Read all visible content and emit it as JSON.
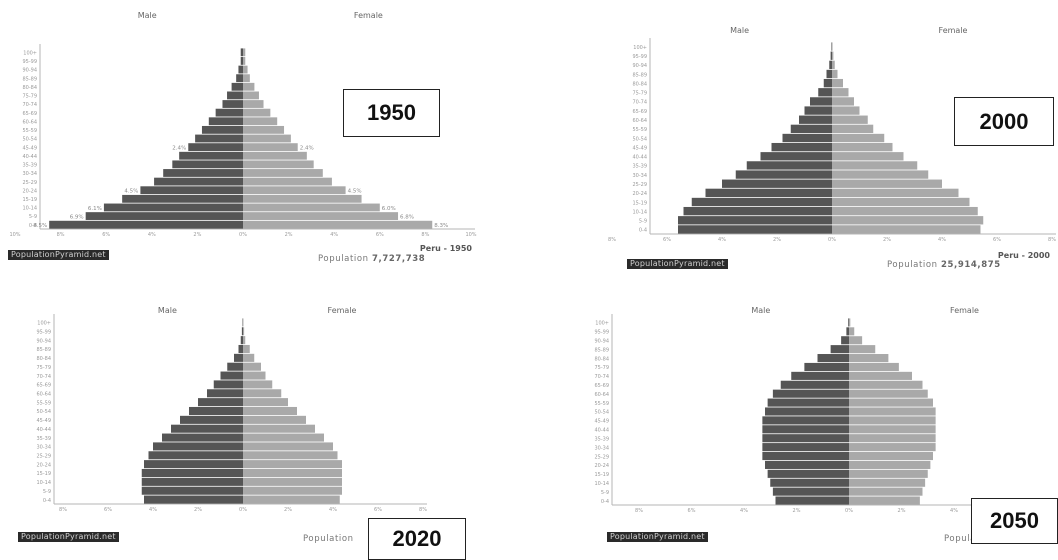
{
  "chart_data": [
    {
      "type": "population-pyramid",
      "year": "1950",
      "headers": {
        "left": "Male",
        "right": "Female"
      },
      "source": "PopulationPyramid.net",
      "country": "Peru - 1950",
      "population_label": "Population",
      "population_value": "7,727,738",
      "age_groups": [
        "0-4",
        "5-9",
        "10-14",
        "15-19",
        "20-24",
        "25-29",
        "30-34",
        "35-39",
        "40-44",
        "45-49",
        "50-54",
        "55-59",
        "60-64",
        "65-69",
        "70-74",
        "75-79",
        "80-84",
        "85-89",
        "90-94",
        "95-99",
        "100+"
      ],
      "male": [
        8.5,
        6.9,
        6.1,
        5.3,
        4.5,
        3.9,
        3.5,
        3.1,
        2.8,
        2.4,
        2.1,
        1.8,
        1.5,
        1.2,
        0.9,
        0.7,
        0.5,
        0.3,
        0.2,
        0.1,
        0.1
      ],
      "female": [
        8.3,
        6.8,
        6.0,
        5.2,
        4.5,
        3.9,
        3.5,
        3.1,
        2.8,
        2.4,
        2.1,
        1.8,
        1.5,
        1.2,
        0.9,
        0.7,
        0.5,
        0.3,
        0.2,
        0.1,
        0.1
      ],
      "male_labels": [
        "8.5%",
        "6.9%",
        "6.1%",
        "",
        "4.5%",
        "",
        "",
        "",
        "",
        "2.4%",
        "",
        "",
        "",
        "",
        "",
        "",
        "",
        "",
        "",
        "",
        ""
      ],
      "female_labels": [
        "8.3%",
        "6.8%",
        "6.0%",
        "",
        "4.5%",
        "",
        "",
        "",
        "",
        "2.4%",
        "",
        "",
        "",
        "",
        "",
        "",
        "",
        "",
        "",
        "",
        ""
      ],
      "x_ticks": [
        "10%",
        "8%",
        "6%",
        "4%",
        "2%",
        "0%",
        "2%",
        "4%",
        "6%",
        "8%",
        "10%"
      ],
      "xlim": [
        -10,
        10
      ]
    },
    {
      "type": "population-pyramid",
      "year": "2000",
      "headers": {
        "left": "Male",
        "right": "Female"
      },
      "source": "PopulationPyramid.net",
      "country": "Peru - 2000",
      "population_label": "Population",
      "population_value": "25,914,875",
      "age_groups": [
        "0-4",
        "5-9",
        "10-14",
        "15-19",
        "20-24",
        "25-29",
        "30-34",
        "35-39",
        "40-44",
        "45-49",
        "50-54",
        "55-59",
        "60-64",
        "65-69",
        "70-74",
        "75-79",
        "80-84",
        "85-89",
        "90-94",
        "95-99",
        "100+"
      ],
      "male": [
        5.6,
        5.6,
        5.4,
        5.1,
        4.6,
        4.0,
        3.5,
        3.1,
        2.6,
        2.2,
        1.8,
        1.5,
        1.2,
        1.0,
        0.8,
        0.5,
        0.3,
        0.2,
        0.1,
        0.05,
        0.02
      ],
      "female": [
        5.4,
        5.5,
        5.3,
        5.0,
        4.6,
        4.0,
        3.5,
        3.1,
        2.6,
        2.2,
        1.9,
        1.5,
        1.3,
        1.0,
        0.8,
        0.6,
        0.4,
        0.2,
        0.1,
        0.05,
        0.02
      ],
      "male_labels": [],
      "female_labels": [],
      "x_ticks": [
        "8%",
        "6%",
        "4%",
        "2%",
        "0%",
        "2%",
        "4%",
        "6%",
        "8%"
      ],
      "xlim": [
        -8,
        8
      ]
    },
    {
      "type": "population-pyramid",
      "year": "2020",
      "headers": {
        "left": "Male",
        "right": "Female"
      },
      "source": "PopulationPyramid.net",
      "country": "",
      "population_label": "Population",
      "population_value": "",
      "age_groups": [
        "0-4",
        "5-9",
        "10-14",
        "15-19",
        "20-24",
        "25-29",
        "30-34",
        "35-39",
        "40-44",
        "45-49",
        "50-54",
        "55-59",
        "60-64",
        "65-69",
        "70-74",
        "75-79",
        "80-84",
        "85-89",
        "90-94",
        "95-99",
        "100+"
      ],
      "male": [
        4.4,
        4.5,
        4.5,
        4.5,
        4.4,
        4.2,
        4.0,
        3.6,
        3.2,
        2.8,
        2.4,
        2.0,
        1.6,
        1.3,
        1.0,
        0.7,
        0.4,
        0.2,
        0.1,
        0.05,
        0.02
      ],
      "female": [
        4.3,
        4.4,
        4.4,
        4.4,
        4.4,
        4.2,
        4.0,
        3.6,
        3.2,
        2.8,
        2.4,
        2.0,
        1.7,
        1.3,
        1.0,
        0.8,
        0.5,
        0.3,
        0.1,
        0.05,
        0.02
      ],
      "male_labels": [],
      "female_labels": [],
      "x_ticks": [
        "8%",
        "6%",
        "4%",
        "2%",
        "0%",
        "2%",
        "4%",
        "6%",
        "8%"
      ],
      "xlim": [
        -8,
        8
      ]
    },
    {
      "type": "population-pyramid",
      "year": "2050",
      "headers": {
        "left": "Male",
        "right": "Female"
      },
      "source": "PopulationPyramid.net",
      "country": "",
      "population_label": "Populatio",
      "population_value": "",
      "age_groups": [
        "0-4",
        "5-9",
        "10-14",
        "15-19",
        "20-24",
        "25-29",
        "30-34",
        "35-39",
        "40-44",
        "45-49",
        "50-54",
        "55-59",
        "60-64",
        "65-69",
        "70-74",
        "75-79",
        "80-84",
        "85-89",
        "90-94",
        "95-99",
        "100+"
      ],
      "male": [
        2.8,
        2.9,
        3.0,
        3.1,
        3.2,
        3.3,
        3.3,
        3.3,
        3.3,
        3.3,
        3.2,
        3.1,
        2.9,
        2.6,
        2.2,
        1.7,
        1.2,
        0.7,
        0.3,
        0.1,
        0.03
      ],
      "female": [
        2.7,
        2.8,
        2.9,
        3.0,
        3.1,
        3.2,
        3.3,
        3.3,
        3.3,
        3.3,
        3.3,
        3.2,
        3.0,
        2.8,
        2.4,
        1.9,
        1.5,
        1.0,
        0.5,
        0.2,
        0.05
      ],
      "male_labels": [],
      "female_labels": [],
      "x_ticks": [
        "8%",
        "6%",
        "4%",
        "2%",
        "0%",
        "2%",
        "4%",
        "6%",
        "8%"
      ],
      "xlim": [
        -8,
        8
      ]
    }
  ],
  "colors": {
    "male": "#555555",
    "female": "#a9a9a9",
    "axis": "#b5b5b5"
  }
}
